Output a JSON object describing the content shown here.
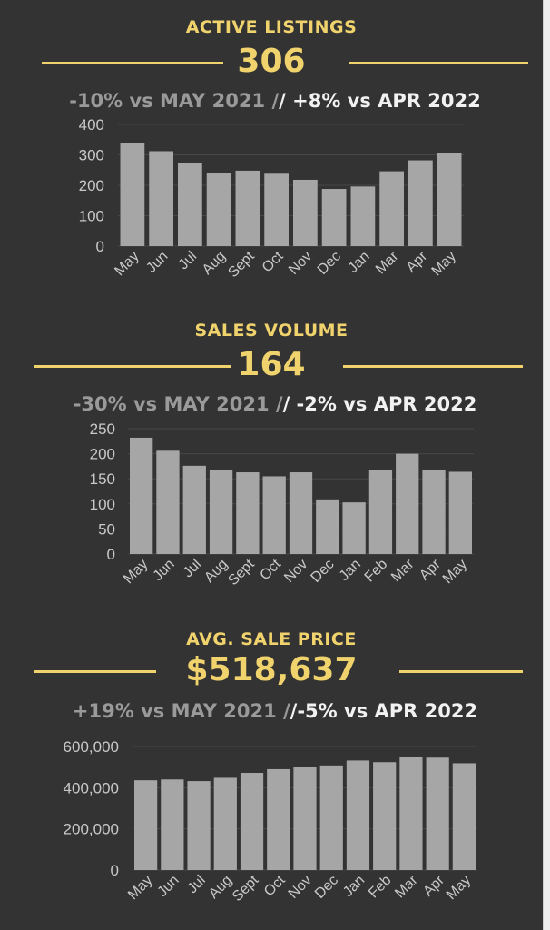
{
  "theme": {
    "background": "#333333",
    "accent": "#f0d36c",
    "bar": "#a6a6a6",
    "grid": "#474747",
    "text_dim": "#9a9a9a",
    "text_bright": "#f2f2f2"
  },
  "listings": {
    "title": "ACTIVE LISTINGS",
    "value": "306",
    "vs_year": "-10% vs MAY 2021 /",
    "vs_month": "/ +8% vs APR 2022"
  },
  "sales": {
    "title": "SALES VOLUME",
    "value": "164",
    "vs_year": "-30% vs MAY 2021 /",
    "vs_month": "/ -2% vs APR 2022"
  },
  "price": {
    "title": "AVG. SALE PRICE",
    "value": "$518,637",
    "vs_year": "+19% vs MAY 2021 /",
    "vs_month": "/-5% vs APR 2022"
  },
  "chart_data": [
    {
      "type": "bar",
      "categories": [
        "May",
        "Jun",
        "Jul",
        "Aug",
        "Sept",
        "Oct",
        "Nov",
        "Dec",
        "Jan",
        "Mar",
        "Apr",
        "May"
      ],
      "values": [
        338,
        312,
        272,
        240,
        248,
        238,
        218,
        188,
        196,
        246,
        282,
        306
      ],
      "yticks": [
        "0",
        "100",
        "200",
        "300",
        "400"
      ],
      "ylim": [
        0,
        400
      ],
      "grid": true,
      "legend": "none"
    },
    {
      "type": "bar",
      "categories": [
        "May",
        "Jun",
        "Jul",
        "Aug",
        "Sept",
        "Oct",
        "Nov",
        "Dec",
        "Jan",
        "Feb",
        "Mar",
        "Apr",
        "May"
      ],
      "values": [
        232,
        206,
        176,
        168,
        163,
        155,
        163,
        109,
        103,
        168,
        200,
        168,
        164
      ],
      "yticks": [
        "0",
        "50",
        "100",
        "150",
        "200",
        "250"
      ],
      "ylim": [
        0,
        250
      ],
      "grid": true,
      "legend": "none"
    },
    {
      "type": "bar",
      "categories": [
        "May",
        "Jun",
        "Jul",
        "Aug",
        "Sept",
        "Oct",
        "Nov",
        "Dec",
        "Jan",
        "Feb",
        "Mar",
        "Apr",
        "May"
      ],
      "values": [
        436000,
        440000,
        432000,
        448000,
        472000,
        490000,
        500000,
        508000,
        532000,
        524000,
        548000,
        546000,
        518637
      ],
      "yticks": [
        "0",
        "200,000",
        "400,000",
        "600,000"
      ],
      "ylim": [
        0,
        600000
      ],
      "grid": true,
      "legend": "none"
    }
  ]
}
